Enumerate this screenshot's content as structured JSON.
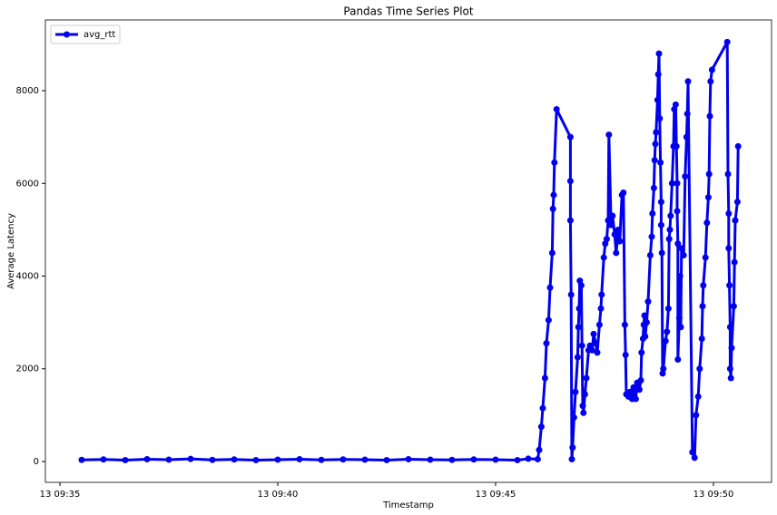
{
  "chart_data": {
    "type": "line",
    "title": "Pandas Time Series Plot",
    "x_label": "Timestamp",
    "y_label": "Average Latency",
    "legend": "upper left",
    "x": [
      "09:35:30",
      "09:36:00",
      "09:36:30",
      "09:37:00",
      "09:37:30",
      "09:38:00",
      "09:38:30",
      "09:39:00",
      "09:39:30",
      "09:40:00",
      "09:40:30",
      "09:41:00",
      "09:41:30",
      "09:42:00",
      "09:42:30",
      "09:43:00",
      "09:43:30",
      "09:44:00",
      "09:44:30",
      "09:45:00",
      "09:45:30",
      "09:45:45",
      "09:45:58",
      "09:46:00",
      "09:46:03",
      "09:46:05",
      "09:46:08",
      "09:46:10",
      "09:46:13",
      "09:46:15",
      "09:46:18",
      "09:46:19",
      "09:46:20",
      "09:46:21",
      "09:46:24",
      "09:46:43",
      "09:46:43",
      "09:46:43",
      "09:46:44",
      "09:46:45",
      "09:46:46",
      "09:46:48",
      "09:46:50",
      "09:46:53",
      "09:46:54",
      "09:46:55",
      "09:46:56",
      "09:46:58",
      "09:46:59",
      "09:47:00",
      "09:47:01",
      "09:47:03",
      "09:47:05",
      "09:47:08",
      "09:47:10",
      "09:47:13",
      "09:47:15",
      "09:47:18",
      "09:47:20",
      "09:47:23",
      "09:47:25",
      "09:47:26",
      "09:47:29",
      "09:47:31",
      "09:47:33",
      "09:47:35",
      "09:47:36",
      "09:47:39",
      "09:47:41",
      "09:47:44",
      "09:47:46",
      "09:47:49",
      "09:47:51",
      "09:47:54",
      "09:47:56",
      "09:47:58",
      "09:47:59",
      "09:48:00",
      "09:48:03",
      "09:48:05",
      "09:48:08",
      "09:48:10",
      "09:48:13",
      "09:48:15",
      "09:48:18",
      "09:48:20",
      "09:48:21",
      "09:48:23",
      "09:48:24",
      "09:48:25",
      "09:48:26",
      "09:48:28",
      "09:48:30",
      "09:48:33",
      "09:48:35",
      "09:48:36",
      "09:48:38",
      "09:48:39",
      "09:48:40",
      "09:48:41",
      "09:48:43",
      "09:48:44",
      "09:48:45",
      "09:48:46",
      "09:48:47",
      "09:48:48",
      "09:48:48",
      "09:48:49",
      "09:48:50",
      "09:48:51",
      "09:48:54",
      "09:48:56",
      "09:48:58",
      "09:48:59",
      "09:49:00",
      "09:49:01",
      "09:49:03",
      "09:49:05",
      "09:49:06",
      "09:49:08",
      "09:49:09",
      "09:49:10",
      "09:49:10",
      "09:49:11",
      "09:49:11",
      "09:49:13",
      "09:49:14",
      "09:49:15",
      "09:49:16",
      "09:49:19",
      "09:49:21",
      "09:49:23",
      "09:49:24",
      "09:49:25",
      "09:49:31",
      "09:49:34",
      "09:49:36",
      "09:49:39",
      "09:49:41",
      "09:49:44",
      "09:49:45",
      "09:49:46",
      "09:49:49",
      "09:49:51",
      "09:49:53",
      "09:49:54",
      "09:49:55",
      "09:49:56",
      "09:49:58",
      "09:50:19",
      "09:50:20",
      "09:50:21",
      "09:50:21",
      "09:50:22",
      "09:50:23",
      "09:50:23",
      "09:50:24",
      "09:50:25",
      "09:50:28",
      "09:50:29",
      "09:50:30",
      "09:50:33",
      "09:50:34"
    ],
    "series": [
      {
        "name": "avg_rtt",
        "color": "#0000ee",
        "values": [
          35,
          45,
          30,
          50,
          40,
          55,
          35,
          45,
          30,
          40,
          50,
          35,
          45,
          40,
          30,
          50,
          40,
          35,
          45,
          40,
          30,
          60,
          50,
          250,
          750,
          1150,
          1800,
          2550,
          3050,
          3750,
          4500,
          5450,
          5750,
          6450,
          7600,
          7000,
          6050,
          5200,
          3600,
          50,
          300,
          950,
          1500,
          2250,
          2900,
          3300,
          3900,
          3800,
          2500,
          1200,
          1050,
          1450,
          1800,
          2400,
          2500,
          2400,
          2750,
          2550,
          2350,
          2950,
          3300,
          3600,
          4400,
          4700,
          4800,
          5200,
          7050,
          5100,
          5300,
          4900,
          4500,
          5000,
          4750,
          5750,
          5800,
          2950,
          2300,
          1450,
          1400,
          1500,
          1350,
          1600,
          1350,
          1700,
          1550,
          1750,
          2350,
          2650,
          2950,
          3150,
          2700,
          3000,
          3450,
          4450,
          4850,
          5350,
          5900,
          6500,
          6850,
          7100,
          7800,
          8350,
          8800,
          7400,
          6450,
          5600,
          5100,
          4500,
          1900,
          2000,
          2600,
          2800,
          3300,
          4800,
          5000,
          5300,
          6000,
          6800,
          7600,
          7700,
          6800,
          6000,
          5400,
          4700,
          2200,
          3100,
          4000,
          2900,
          4600,
          4450,
          6150,
          7000,
          7500,
          8200,
          200,
          80,
          1000,
          1400,
          2000,
          2650,
          3350,
          3800,
          4400,
          5150,
          5700,
          6200,
          7450,
          8200,
          8450,
          9050,
          6200,
          5350,
          4600,
          3800,
          2900,
          2000,
          1800,
          2450,
          3350,
          4300,
          5200,
          5600,
          6800
        ]
      }
    ],
    "xlim": [
      "09:34:40",
      "09:51:20"
    ],
    "xticks": [
      {
        "value": "09:35:00",
        "label": "13 09:35"
      },
      {
        "value": "09:40:00",
        "label": "13 09:40"
      },
      {
        "value": "09:45:00",
        "label": "13 09:45"
      },
      {
        "value": "09:50:00",
        "label": "13 09:50"
      }
    ],
    "ylim": [
      -450,
      9526
    ],
    "yticks": [
      0,
      2000,
      4000,
      6000,
      8000
    ],
    "grid": false
  }
}
